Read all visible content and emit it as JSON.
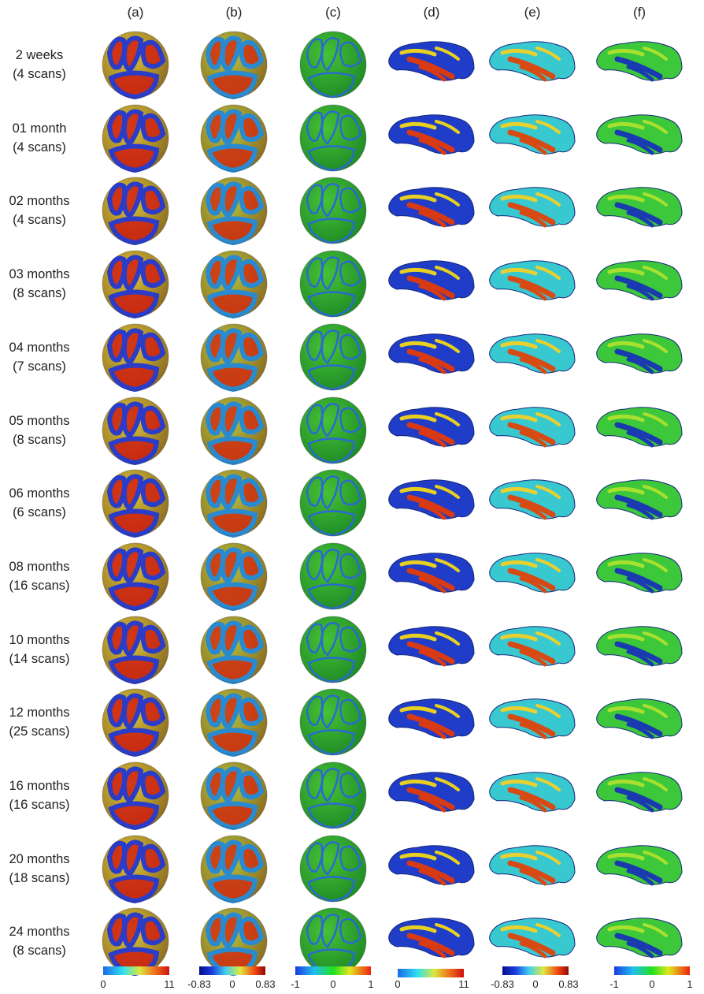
{
  "columns": [
    "(a)",
    "(b)",
    "(c)",
    "(d)",
    "(e)",
    "(f)"
  ],
  "rows": [
    {
      "age": "2 weeks",
      "scans": "(4 scans)"
    },
    {
      "age": "01 month",
      "scans": "(4 scans)"
    },
    {
      "age": "02 months",
      "scans": "(4 scans)"
    },
    {
      "age": "03 months",
      "scans": "(8 scans)"
    },
    {
      "age": "04 months",
      "scans": "(7 scans)"
    },
    {
      "age": "05 months",
      "scans": "(8 scans)"
    },
    {
      "age": "06 months",
      "scans": "(6 scans)"
    },
    {
      "age": "08 months",
      "scans": "(16 scans)"
    },
    {
      "age": "10 months",
      "scans": "(14 scans)"
    },
    {
      "age": "12 months",
      "scans": "(25 scans)"
    },
    {
      "age": "16 months",
      "scans": "(16 scans)"
    },
    {
      "age": "20 months",
      "scans": "(18 scans)"
    },
    {
      "age": "24 months",
      "scans": "(8 scans)"
    }
  ],
  "colorbars": [
    {
      "ticks": [
        "0",
        "11"
      ],
      "scheme": "jet-light"
    },
    {
      "ticks": [
        "-0.83",
        "0",
        "0.83"
      ],
      "scheme": "jet"
    },
    {
      "ticks": [
        "-1",
        "0",
        "1"
      ],
      "scheme": "jet-green"
    },
    {
      "ticks": [
        "0",
        "11"
      ],
      "scheme": "jet-light"
    },
    {
      "ticks": [
        "-0.83",
        "0",
        "0.83"
      ],
      "scheme": "jet"
    },
    {
      "ticks": [
        "-1",
        "0",
        "1"
      ],
      "scheme": "jet-green"
    }
  ],
  "colors": {
    "blue": "#1a2fc8",
    "cyan": "#27d0e8",
    "green": "#3cc43c",
    "yellow": "#e8e030",
    "red": "#d82010",
    "darkred": "#8a0a0a"
  }
}
